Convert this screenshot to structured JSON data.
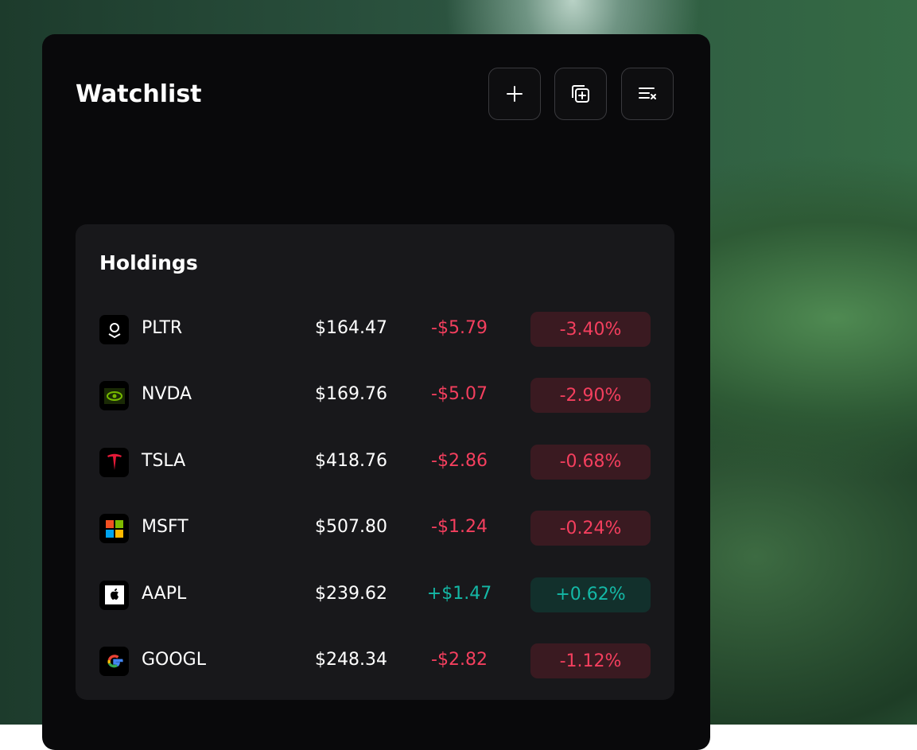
{
  "header": {
    "title": "Watchlist"
  },
  "holdings": {
    "title": "Holdings",
    "rows": [
      {
        "ticker": "PLTR",
        "price": "$164.47",
        "change": "-$5.79",
        "percent": "-3.40%"
      },
      {
        "ticker": "NVDA",
        "price": "$169.76",
        "change": "-$5.07",
        "percent": "-2.90%"
      },
      {
        "ticker": "TSLA",
        "price": "$418.76",
        "change": "-$2.86",
        "percent": "-0.68%"
      },
      {
        "ticker": "MSFT",
        "price": "$507.80",
        "change": "-$1.24",
        "percent": "-0.24%"
      },
      {
        "ticker": "AAPL",
        "price": "$239.62",
        "change": "+$1.47",
        "percent": "+0.62%"
      },
      {
        "ticker": "GOOGL",
        "price": "$248.34",
        "change": "-$2.82",
        "percent": "-1.12%"
      }
    ]
  }
}
